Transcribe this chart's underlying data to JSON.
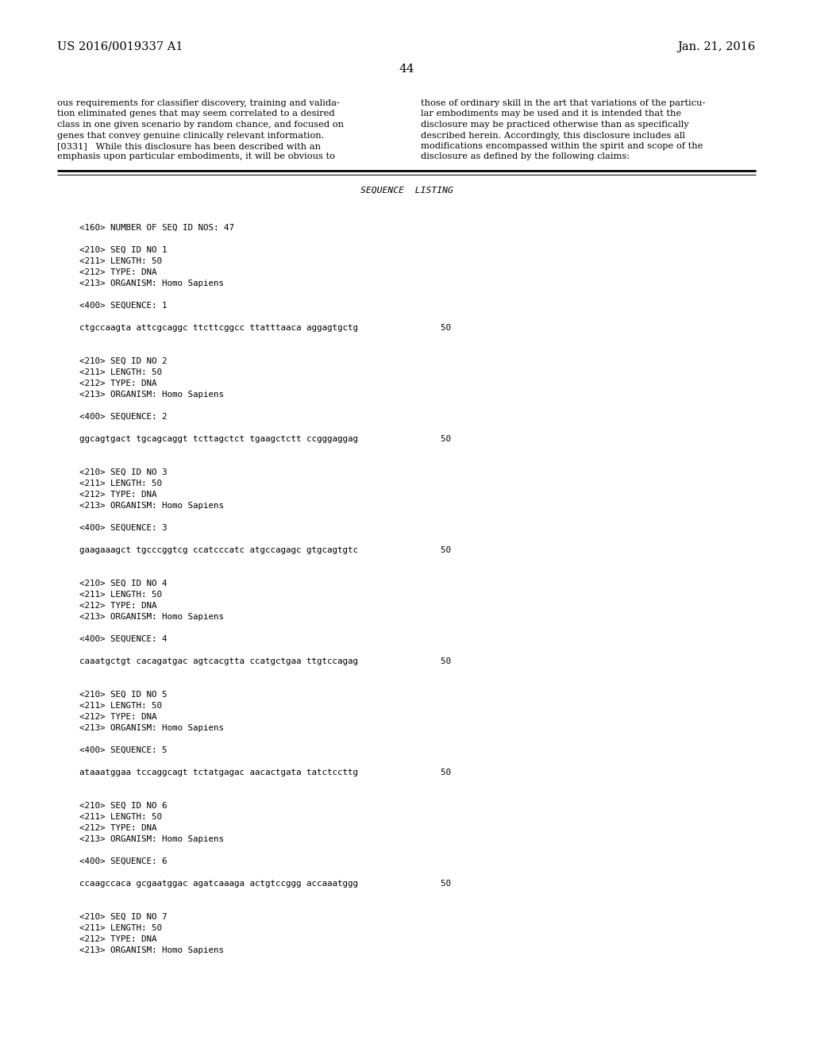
{
  "background_color": "#ffffff",
  "header_left": "US 2016/0019337 A1",
  "header_right": "Jan. 21, 2016",
  "page_number": "44",
  "body_left_col": [
    "ous requirements for classifier discovery, training and valida-",
    "tion eliminated genes that may seem correlated to a desired",
    "class in one given scenario by random chance, and focused on",
    "genes that convey genuine clinically relevant information.",
    "[0331]   While this disclosure has been described with an",
    "emphasis upon particular embodiments, it will be obvious to"
  ],
  "body_right_col": [
    "those of ordinary skill in the art that variations of the particu-",
    "lar embodiments may be used and it is intended that the",
    "disclosure may be practiced otherwise than as specifically",
    "described herein. Accordingly, this disclosure includes all",
    "modifications encompassed within the spirit and scope of the",
    "disclosure as defined by the following claims:"
  ],
  "section_title": "SEQUENCE  LISTING",
  "sequence_listing": [
    "",
    "<160> NUMBER OF SEQ ID NOS: 47",
    "",
    "<210> SEQ ID NO 1",
    "<211> LENGTH: 50",
    "<212> TYPE: DNA",
    "<213> ORGANISM: Homo Sapiens",
    "",
    "<400> SEQUENCE: 1",
    "",
    "ctgccaagta attcgcaggc ttcttcggcc ttatttaaca aggagtgctg                50",
    "",
    "",
    "<210> SEQ ID NO 2",
    "<211> LENGTH: 50",
    "<212> TYPE: DNA",
    "<213> ORGANISM: Homo Sapiens",
    "",
    "<400> SEQUENCE: 2",
    "",
    "ggcagtgact tgcagcaggt tcttagctct tgaagctctt ccgggaggag                50",
    "",
    "",
    "<210> SEQ ID NO 3",
    "<211> LENGTH: 50",
    "<212> TYPE: DNA",
    "<213> ORGANISM: Homo Sapiens",
    "",
    "<400> SEQUENCE: 3",
    "",
    "gaagaaagct tgcccggtcg ccatcccatc atgccagagc gtgcagtgtc                50",
    "",
    "",
    "<210> SEQ ID NO 4",
    "<211> LENGTH: 50",
    "<212> TYPE: DNA",
    "<213> ORGANISM: Homo Sapiens",
    "",
    "<400> SEQUENCE: 4",
    "",
    "caaatgctgt cacagatgac agtcacgtta ccatgctgaa ttgtccagag                50",
    "",
    "",
    "<210> SEQ ID NO 5",
    "<211> LENGTH: 50",
    "<212> TYPE: DNA",
    "<213> ORGANISM: Homo Sapiens",
    "",
    "<400> SEQUENCE: 5",
    "",
    "ataaatggaa tccaggcagt tctatgagac aacactgata tatctccttg                50",
    "",
    "",
    "<210> SEQ ID NO 6",
    "<211> LENGTH: 50",
    "<212> TYPE: DNA",
    "<213> ORGANISM: Homo Sapiens",
    "",
    "<400> SEQUENCE: 6",
    "",
    "ccaagccaca gcgaatggac agatcaaaga actgtccggg accaaatggg                50",
    "",
    "",
    "<210> SEQ ID NO 7",
    "<211> LENGTH: 50",
    "<212> TYPE: DNA",
    "<213> ORGANISM: Homo Sapiens"
  ],
  "header_fontsize": 10.5,
  "pagenum_fontsize": 11,
  "body_fontsize": 8.2,
  "mono_fontsize": 7.8,
  "section_title_fontsize": 8.2
}
